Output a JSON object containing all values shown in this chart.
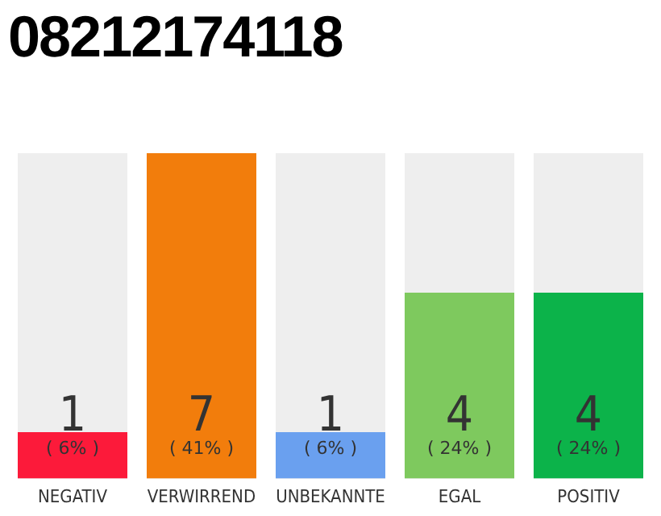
{
  "chart_data": {
    "type": "bar",
    "title": "08212174118",
    "categories": [
      "NEGATIV",
      "VERWIRREND",
      "UNBEKANNTE",
      "EGAL",
      "POSITIV"
    ],
    "values": [
      1,
      7,
      1,
      4,
      4
    ],
    "colors": [
      "#fc1a3a",
      "#f27d0c",
      "#6aa0ef",
      "#7ec95e",
      "#0cb34a"
    ],
    "value_labels": [
      "1",
      "7",
      "1",
      "4",
      "4"
    ],
    "annotations": [
      "( 6% )",
      "( 41% )",
      "( 6% )",
      "( 24% )",
      "( 24% )"
    ],
    "grid": false,
    "legend": false
  }
}
